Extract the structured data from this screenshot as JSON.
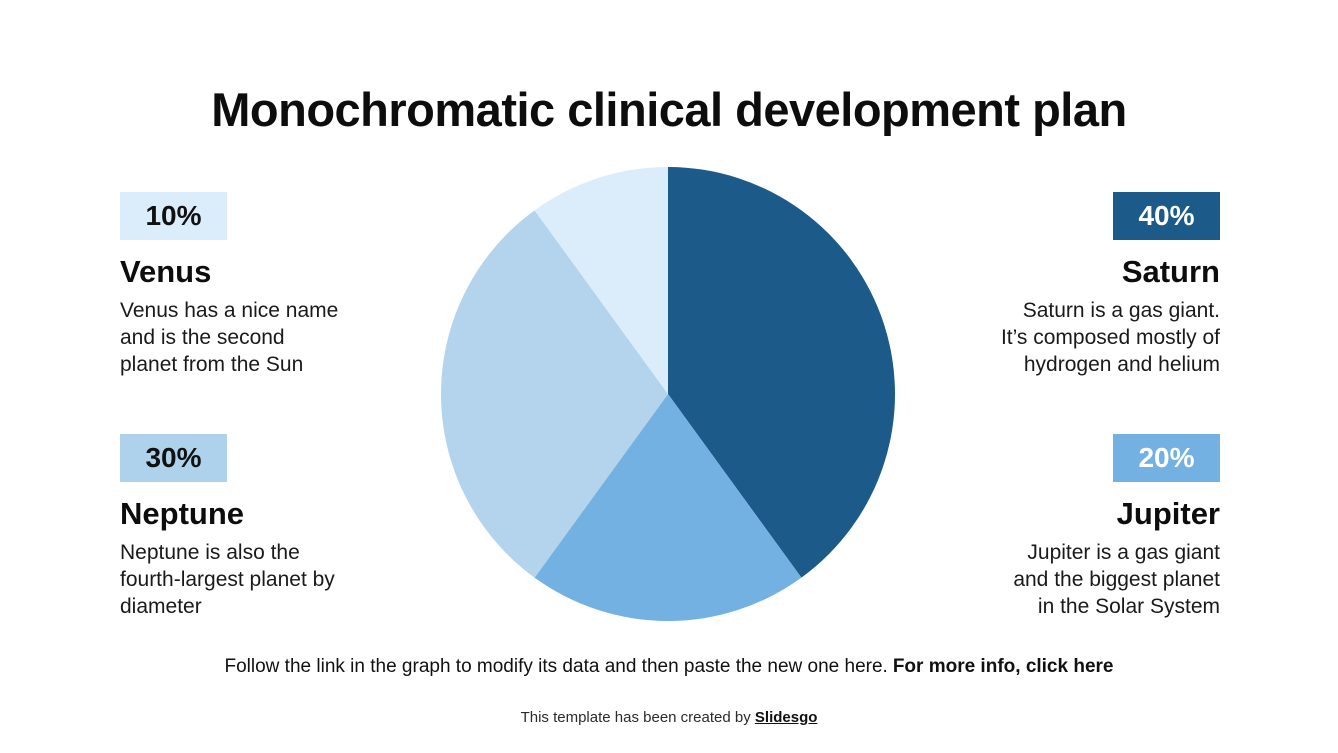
{
  "slide": {
    "title": "Monochromatic clinical development plan",
    "background_color": "#ffffff",
    "footer": {
      "text": "Follow the link in the graph to modify its data and then paste the new one here.",
      "link_text": "For more info, click here"
    },
    "credit": {
      "text": "This template has been created by ",
      "brand": "Slidesgo"
    }
  },
  "planets": [
    {
      "id": "venus",
      "name": "Venus",
      "pct": "10%",
      "value": 10,
      "color": "#dbecfa",
      "badge_text_color": "#111111",
      "desc": "Venus has a nice name\nand is the second\nplanet from the Sun"
    },
    {
      "id": "neptune",
      "name": "Neptune",
      "pct": "30%",
      "value": 30,
      "color": "#aed2ec",
      "badge_text_color": "#111111",
      "desc": "Neptune is also the\nfourth-largest planet by\ndiameter"
    },
    {
      "id": "saturn",
      "name": "Saturn",
      "pct": "40%",
      "value": 40,
      "color": "#1b5a89",
      "badge_text_color": "#ffffff",
      "desc": "Saturn is a gas giant.\nIt’s composed mostly of\nhydrogen and helium"
    },
    {
      "id": "jupiter",
      "name": "Jupiter",
      "pct": "20%",
      "value": 20,
      "color": "#72b1e2",
      "badge_text_color": "#ffffff",
      "desc": "Jupiter is a gas giant\nand the biggest planet\nin the Solar System"
    }
  ],
  "chart_data": {
    "type": "pie",
    "title": "Monochromatic clinical development plan",
    "labels": [
      "Saturn",
      "Jupiter",
      "Neptune",
      "Venus"
    ],
    "values": [
      40,
      20,
      30,
      10
    ],
    "colors": [
      "#1b5a89",
      "#72b1e2",
      "#b3d4ec",
      "#dbecfa"
    ],
    "unit": "%",
    "start_angle_deg": 0,
    "direction": "clockwise",
    "legend_position": "none",
    "grid": false
  }
}
